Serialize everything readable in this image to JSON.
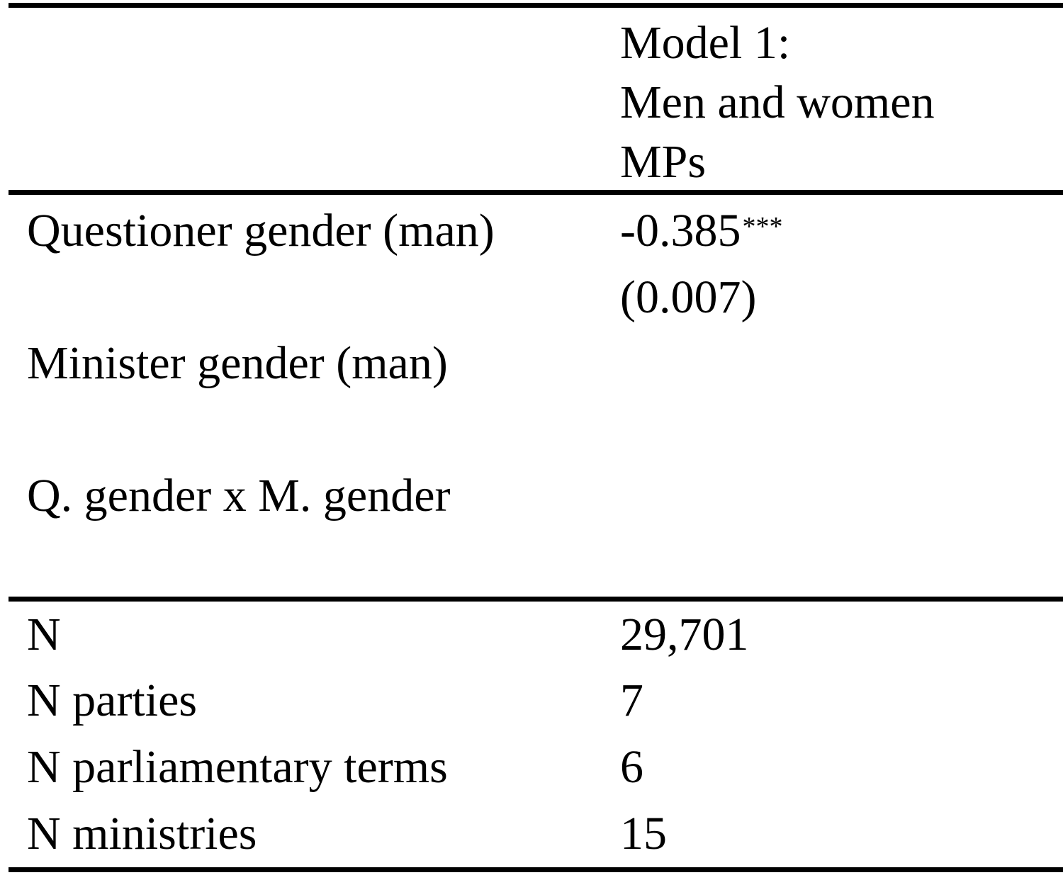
{
  "table": {
    "header": {
      "model_col_lines": [
        "Model 1:",
        "Men and women",
        "MPs"
      ]
    },
    "rows": [
      {
        "label": "Questioner gender (man)",
        "coef": "-0.385",
        "stars": "***",
        "se": "(0.007)"
      },
      {
        "label": "Minister gender (man)",
        "coef": "",
        "stars": "",
        "se": ""
      },
      {
        "label": "Q. gender x M. gender",
        "coef": "",
        "stars": "",
        "se": ""
      }
    ],
    "stats": [
      {
        "label": "N",
        "value": "29,701"
      },
      {
        "label": "N parties",
        "value": "7"
      },
      {
        "label": "N parliamentary terms",
        "value": "6"
      },
      {
        "label": "N ministries",
        "value": "15"
      }
    ]
  }
}
